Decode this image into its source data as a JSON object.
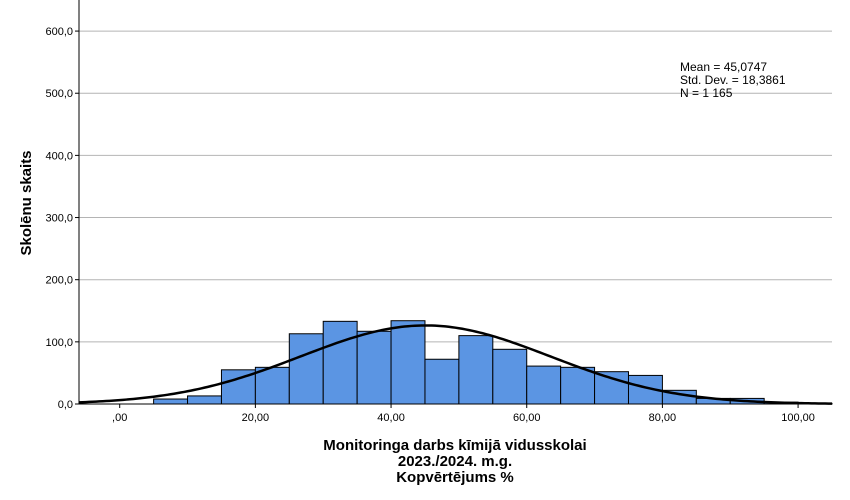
{
  "chart_data": {
    "type": "bar",
    "xlabel_lines": [
      "Monitoringa darbs kīmijā vidusskolai",
      "2023./2024. m.g.",
      "Kopvērtējums %"
    ],
    "ylabel": "Skolēnu skaits",
    "xlim": [
      -6,
      105
    ],
    "ylim": [
      0,
      650
    ],
    "x_ticks": [
      0,
      20,
      40,
      60,
      80,
      100
    ],
    "x_tick_labels": [
      ",00",
      "20,00",
      "40,00",
      "60,00",
      "80,00",
      "100,00"
    ],
    "y_ticks": [
      0,
      100,
      200,
      300,
      400,
      500,
      600
    ],
    "y_tick_labels": [
      "0,0",
      "100,0",
      "200,0",
      "300,0",
      "400,0",
      "500,0",
      "600,0"
    ],
    "grid": true,
    "bin_width": 5,
    "bins": [
      {
        "start": 5,
        "count": 8
      },
      {
        "start": 10,
        "count": 13
      },
      {
        "start": 15,
        "count": 55
      },
      {
        "start": 20,
        "count": 59
      },
      {
        "start": 25,
        "count": 113
      },
      {
        "start": 30,
        "count": 133
      },
      {
        "start": 35,
        "count": 117
      },
      {
        "start": 40,
        "count": 134
      },
      {
        "start": 45,
        "count": 72
      },
      {
        "start": 50,
        "count": 110
      },
      {
        "start": 55,
        "count": 88
      },
      {
        "start": 60,
        "count": 61
      },
      {
        "start": 65,
        "count": 59
      },
      {
        "start": 70,
        "count": 52
      },
      {
        "start": 75,
        "count": 46
      },
      {
        "start": 80,
        "count": 22
      },
      {
        "start": 85,
        "count": 9
      },
      {
        "start": 90,
        "count": 9
      },
      {
        "start": 95,
        "count": 3
      },
      {
        "start": 100,
        "count": 1
      }
    ],
    "normal_curve": {
      "mean": 45.0747,
      "sd": 18.3861,
      "n": 1165
    },
    "stats_text": [
      "Mean = 45,0747",
      "Std. Dev. = 18,3861",
      "N = 1 165"
    ],
    "bar_color": "#5b95e3",
    "bar_edge_color": "#000000",
    "curve_color": "#000000",
    "grid_color": "#b4b4b4"
  }
}
